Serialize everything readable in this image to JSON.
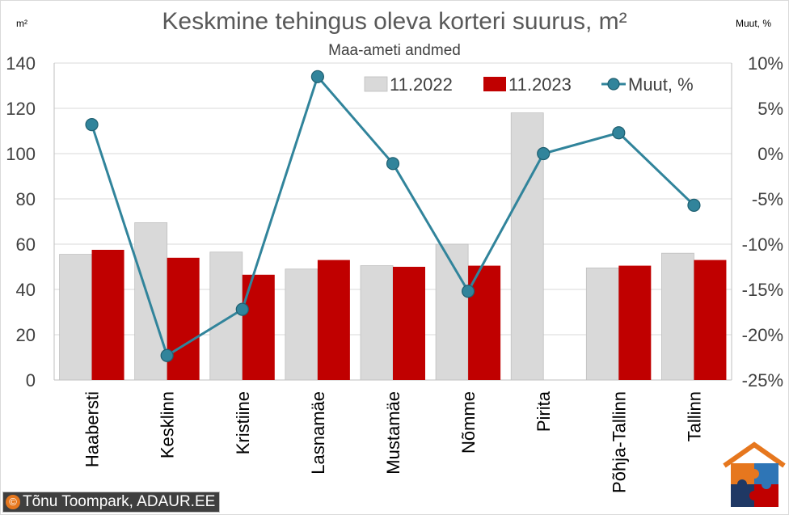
{
  "chart_data": {
    "type": "bar",
    "title": "Keskmine tehingus oleva korteri suurus, m²",
    "subtitle": "Maa-ameti andmed",
    "y_unit_left": "m²",
    "y_unit_right": "Muut, %",
    "categories": [
      "Haabersti",
      "Kesklinn",
      "Kristiine",
      "Lasnamäe",
      "Mustamäe",
      "Nõmme",
      "Pirita",
      "Põhja-Tallinn",
      "Tallinn"
    ],
    "series": [
      {
        "name": "11.2022",
        "type": "bar",
        "axis": "left",
        "color": "#d9d9d9",
        "values": [
          55.5,
          69.5,
          56.5,
          49,
          50.5,
          60,
          118,
          49.5,
          56
        ]
      },
      {
        "name": "11.2023",
        "type": "bar",
        "axis": "left",
        "color": "#c00000",
        "values": [
          57.5,
          54,
          46.5,
          53,
          50,
          50.5,
          null,
          50.5,
          53
        ]
      },
      {
        "name": "Muut, %",
        "type": "line",
        "axis": "right",
        "color": "#31849b",
        "values": [
          3.2,
          -22.3,
          -17.2,
          8.5,
          -1.1,
          -15.2,
          0,
          2.3,
          -5.7
        ]
      }
    ],
    "y_left": {
      "min": 0,
      "max": 140,
      "ticks": [
        0,
        20,
        40,
        60,
        80,
        100,
        120,
        140
      ]
    },
    "y_right": {
      "min": -25,
      "max": 10,
      "ticks": [
        -25,
        -20,
        -15,
        -10,
        -5,
        0,
        5,
        10
      ],
      "tick_labels": [
        "-25%",
        "-20%",
        "-15%",
        "-10%",
        "-5%",
        "0%",
        "5%",
        "10%"
      ]
    },
    "grid": true,
    "legend_position": "top-right"
  },
  "footer": {
    "copyright_symbol": "©",
    "copyright_text": "Tõnu Toompark, ADAUR.EE"
  },
  "logo": {
    "name": "house-puzzle-logo",
    "colors": [
      "#e6771e",
      "#2e75b6",
      "#c00000",
      "#1f3864"
    ]
  }
}
